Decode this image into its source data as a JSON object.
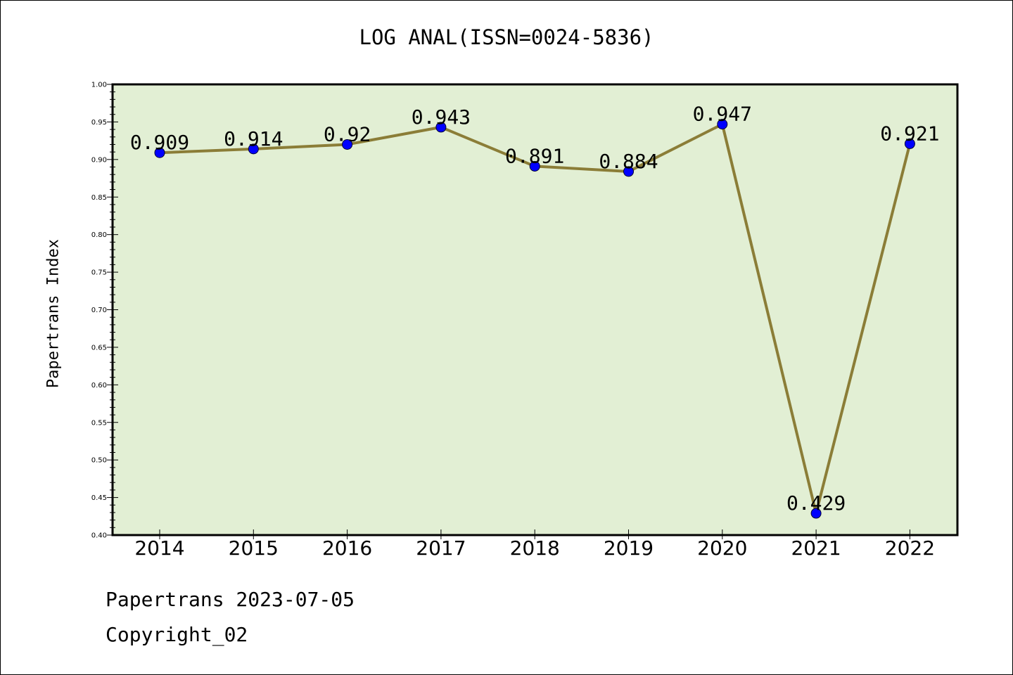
{
  "chart_data": {
    "type": "line",
    "title": "LOG ANAL(ISSN=0024-5836)",
    "ylabel": "Papertrans Index",
    "xlabel": "",
    "categories": [
      "2014",
      "2015",
      "2016",
      "2017",
      "2018",
      "2019",
      "2020",
      "2021",
      "2022"
    ],
    "series": [
      {
        "values": [
          0.909,
          0.914,
          0.92,
          0.943,
          0.891,
          0.884,
          0.947,
          0.429,
          0.921
        ],
        "labels": [
          "0.909",
          "0.914",
          "0.92",
          "0.943",
          "0.891",
          "0.884",
          "0.947",
          "0.429",
          "0.921"
        ],
        "line_color": "#8b7d37",
        "marker_color": "#0000ff"
      }
    ],
    "ylim": [
      0.4,
      1.0
    ],
    "yticks": [
      "0.40",
      "0.45",
      "0.50",
      "0.55",
      "0.60",
      "0.65",
      "0.70",
      "0.75",
      "0.80",
      "0.85",
      "0.90",
      "0.95",
      "1.00"
    ],
    "plot_background": "#e2efd4",
    "grid": false,
    "legend": "none"
  },
  "footer": {
    "line1": "Papertrans 2023-07-05",
    "line2": "Copyright_02"
  }
}
